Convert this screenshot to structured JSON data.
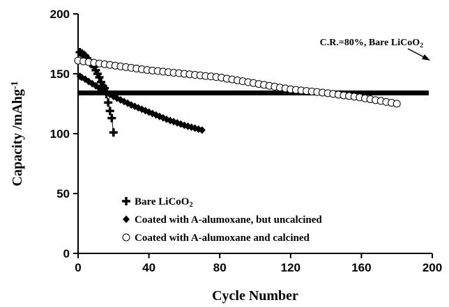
{
  "chart_data": {
    "type": "scatter",
    "xlabel": "Cycle Number",
    "ylabel": "Capacity /mAhg-1",
    "xlim": [
      0,
      200
    ],
    "xticks": [
      0,
      40,
      80,
      120,
      160,
      200
    ],
    "ylim": [
      0,
      200
    ],
    "yticks": [
      0,
      50,
      100,
      150,
      200
    ],
    "grid": false,
    "legend": "lower left",
    "series": [
      {
        "name": "Bare LiCoO2",
        "color": "#000000",
        "marker": "plus",
        "line": true,
        "x": [
          1,
          2,
          3,
          4,
          5,
          6,
          7,
          8,
          9,
          10,
          11,
          12,
          13,
          14,
          15,
          16,
          17,
          18,
          19,
          20
        ],
        "values": [
          168,
          167,
          166,
          165,
          163,
          161,
          159,
          158,
          156,
          153,
          150,
          147,
          143,
          140,
          138,
          133,
          126,
          119,
          113,
          101
        ]
      },
      {
        "name": "Coated with A-alumoxane, but uncalcined",
        "color": "#000000",
        "marker": "diamond",
        "line": false,
        "x": [
          1,
          2,
          4,
          6,
          8,
          10,
          12,
          14,
          16,
          18,
          20,
          22,
          24,
          26,
          28,
          30,
          32,
          34,
          36,
          38,
          40,
          42,
          44,
          46,
          48,
          50,
          52,
          54,
          56,
          58,
          60,
          62,
          64,
          66,
          68,
          70
        ],
        "values": [
          148,
          147,
          145.5,
          143.5,
          141.8,
          140,
          138,
          136.5,
          134.7,
          132.8,
          131,
          129.6,
          128.2,
          126.8,
          125.4,
          124,
          122.8,
          121.6,
          120.4,
          119.2,
          118,
          116.8,
          115.6,
          114.4,
          113.2,
          112,
          111,
          110,
          109,
          108,
          107,
          106.2,
          105.4,
          104.6,
          103.8,
          103
        ]
      },
      {
        "name": "Coated with A-alumoxane and calcined",
        "color": "#000000",
        "marker": "circle",
        "line": false,
        "x": [
          0,
          3,
          6,
          9,
          12,
          15,
          18,
          21,
          24,
          27,
          30,
          33,
          36,
          39,
          42,
          45,
          48,
          51,
          54,
          57,
          60,
          63,
          66,
          69,
          72,
          75,
          78,
          81,
          84,
          87,
          90,
          93,
          96,
          99,
          102,
          105,
          108,
          111,
          114,
          117,
          120,
          123,
          126,
          129,
          132,
          135,
          138,
          141,
          144,
          147,
          150,
          153,
          156,
          159,
          162,
          165,
          168,
          171,
          174,
          177,
          180
        ],
        "values": [
          161,
          160.4,
          159.8,
          159.2,
          158.6,
          158,
          157.4,
          156.8,
          156.2,
          155.6,
          155,
          154.4,
          153.8,
          153.2,
          152.7,
          152.3,
          151.8,
          151.4,
          150.9,
          150.5,
          150,
          149.6,
          149.1,
          148.7,
          148.2,
          147.8,
          147.3,
          146.8,
          145.9,
          145.3,
          144.5,
          143.8,
          143,
          142.3,
          141.5,
          140.8,
          140,
          139.3,
          138.5,
          137.8,
          137,
          136.6,
          136.1,
          135.7,
          135.2,
          134.8,
          134.3,
          133.8,
          133.2,
          132.6,
          132,
          131.5,
          130.9,
          130.3,
          129.5,
          128.8,
          128,
          127.3,
          126.5,
          125.8,
          125
        ]
      }
    ],
    "reference_line": {
      "y": 134,
      "x": [
        0,
        198
      ],
      "label": "C.R.=80%, Bare LiCoO2"
    }
  }
}
